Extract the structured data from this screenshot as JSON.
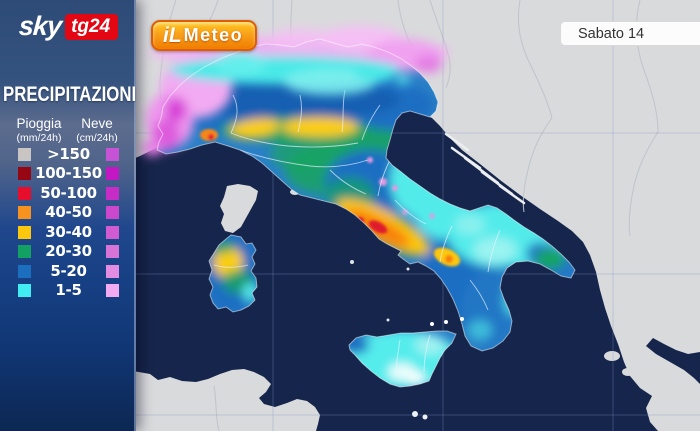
{
  "branding": {
    "sky_logo": {
      "sky": "sky",
      "tg24": "tg24"
    },
    "meteo_logo": {
      "il": "iL",
      "meteo": "Meteo"
    }
  },
  "date_label": "Sabato 14",
  "sidebar": {
    "title": "PRECIPITAZIONI",
    "columns": {
      "rain": {
        "label": "Pioggia",
        "unit": "(mm/24h)"
      },
      "snow": {
        "label": "Neve",
        "unit": "(cm/24h)"
      }
    },
    "legend": {
      "rows": [
        {
          "range": ">150",
          "rain_color": "#c9c5c3",
          "snow_color": "#c653d6"
        },
        {
          "range": "100-150",
          "rain_color": "#970713",
          "snow_color": "#c417c4"
        },
        {
          "range": "50-100",
          "rain_color": "#e60e2b",
          "snow_color": "#c72cc7"
        },
        {
          "range": "40-50",
          "rain_color": "#f6921e",
          "snow_color": "#cb47cb"
        },
        {
          "range": "30-40",
          "rain_color": "#fcc70d",
          "snow_color": "#d15cd1"
        },
        {
          "range": "20-30",
          "rain_color": "#12a163",
          "snow_color": "#d873d8"
        },
        {
          "range": "5-20",
          "rain_color": "#1c6fbe",
          "snow_color": "#e28ce2"
        },
        {
          "range": "1-5",
          "rain_color": "#41edf1",
          "snow_color": "#f2abf0"
        }
      ]
    }
  },
  "map": {
    "description": "Precipitation forecast map of Italy (rain mm/24h, snow cm/24h)",
    "colors": {
      "sea": "#16254b",
      "land": "#d9dadc",
      "landborder": "#bfc3cb"
    }
  }
}
